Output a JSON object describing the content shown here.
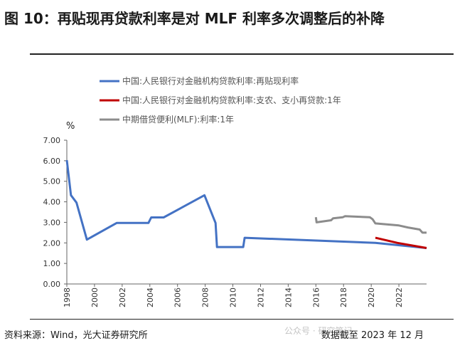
{
  "figure": {
    "title": "图 10：再贴现再贷款利率是对 MLF 利率多次调整后的补降",
    "source": "资料来源：Wind，光大证券研究所",
    "date_note": "数据截至 2023 年 12 月",
    "watermark": "公众号 · 研究笔记"
  },
  "chart_data": {
    "type": "line",
    "title": "",
    "unit_label": "%",
    "xlabel": "",
    "ylabel": "",
    "xlim": [
      1998,
      2024
    ],
    "ylim": [
      0,
      7
    ],
    "y_ticks": [
      "0.00",
      "1.00",
      "2.00",
      "3.00",
      "4.00",
      "5.00",
      "6.00",
      "7.00"
    ],
    "x_ticks": [
      "1998",
      "2000",
      "2002",
      "2004",
      "2006",
      "2008",
      "2010",
      "2012",
      "2014",
      "2016",
      "2018",
      "2020",
      "2022"
    ],
    "grid": false,
    "legend_position": "top",
    "series": [
      {
        "name": "中国:人民银行对金融机构贷款利率:再贴现利率",
        "color": "#4472c4",
        "points": [
          [
            1998.0,
            6.03
          ],
          [
            1998.3,
            4.32
          ],
          [
            1998.7,
            3.96
          ],
          [
            1999.45,
            2.16
          ],
          [
            2001.6,
            2.97
          ],
          [
            2003.9,
            2.97
          ],
          [
            2004.1,
            3.24
          ],
          [
            2005.0,
            3.24
          ],
          [
            2007.95,
            4.32
          ],
          [
            2008.75,
            2.97
          ],
          [
            2008.85,
            1.8
          ],
          [
            2010.75,
            1.8
          ],
          [
            2010.85,
            2.25
          ],
          [
            2020.3,
            2.0
          ],
          [
            2024.0,
            1.75
          ]
        ]
      },
      {
        "name": "中国:人民银行对金融机构贷款利率:支农、支小再贷款:1年",
        "color": "#c00000",
        "points": [
          [
            2020.3,
            2.25
          ],
          [
            2021.9,
            2.0
          ],
          [
            2024.0,
            1.75
          ]
        ]
      },
      {
        "name": "中期借贷便利(MLF):利率:1年",
        "color": "#8c8c8c",
        "points": [
          [
            2016.0,
            3.25
          ],
          [
            2016.05,
            3.0
          ],
          [
            2017.1,
            3.1
          ],
          [
            2017.25,
            3.2
          ],
          [
            2017.95,
            3.25
          ],
          [
            2018.1,
            3.3
          ],
          [
            2019.9,
            3.25
          ],
          [
            2020.1,
            3.15
          ],
          [
            2020.3,
            2.95
          ],
          [
            2022.0,
            2.85
          ],
          [
            2022.65,
            2.75
          ],
          [
            2023.5,
            2.65
          ],
          [
            2023.7,
            2.5
          ],
          [
            2024.0,
            2.5
          ]
        ]
      }
    ]
  }
}
